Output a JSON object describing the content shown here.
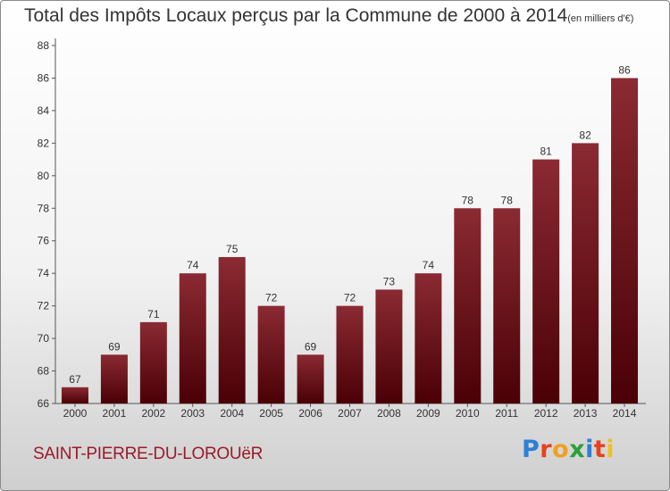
{
  "title": "Total des Impôts Locaux perçus par la Commune de 2000 à 2014",
  "title_unit": "(en milliers d'€)",
  "commune": "SAINT-PIERRE-DU-LOROUëR",
  "logo": {
    "letters": [
      "P",
      "r",
      "o",
      "x",
      "i",
      "t",
      "i"
    ],
    "colors": [
      "#2e7fd6",
      "#e8401c",
      "#f0a020",
      "#2e9e3c",
      "#2e7fd6",
      "#e8401c",
      "#f0c020"
    ]
  },
  "colors": {
    "bar_top": "#8b2a32",
    "bar_bottom": "#4a0006",
    "title": "#333333",
    "commune": "#9a1b2a"
  },
  "chart_data": {
    "type": "bar",
    "title": "Total des Impôts Locaux perçus par la Commune de 2000 à 2014",
    "ylabel": "",
    "xlabel": "",
    "categories": [
      "2000",
      "2001",
      "2002",
      "2003",
      "2004",
      "2005",
      "2006",
      "2007",
      "2008",
      "2009",
      "2010",
      "2011",
      "2012",
      "2013",
      "2014"
    ],
    "values": [
      67,
      69,
      71,
      74,
      75,
      72,
      69,
      72,
      73,
      74,
      78,
      78,
      81,
      82,
      86
    ],
    "ylim": [
      66,
      88
    ],
    "yticks": [
      66,
      68,
      70,
      72,
      74,
      76,
      78,
      80,
      82,
      84,
      86,
      88
    ],
    "grid": false,
    "legend": "none"
  }
}
